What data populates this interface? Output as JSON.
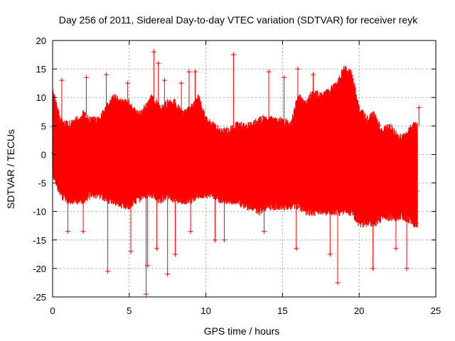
{
  "chart_data": {
    "type": "scatter",
    "title": "Day 256 of 2011, Sidereal Day-to-day VTEC variation (SDTVAR) for receiver reyk",
    "xlabel": "GPS time / hours",
    "ylabel": "SDTVAR / TECUs",
    "xlim": [
      0,
      25
    ],
    "ylim": [
      -25,
      20
    ],
    "xticks": [
      "0",
      "5",
      "10",
      "15",
      "20",
      "25"
    ],
    "yticks": [
      "-25",
      "-20",
      "-15",
      "-10",
      "-5",
      "0",
      "5",
      "10",
      "15",
      "20"
    ],
    "grid": true,
    "series": [
      {
        "name": "SDTVAR",
        "color": "#ff0000",
        "marker": "plus",
        "errorbars": true,
        "envelope": {
          "x": [
            0,
            0.5,
            1,
            1.5,
            2,
            2.5,
            3,
            3.5,
            4,
            4.5,
            5,
            5.5,
            6,
            6.5,
            7,
            7.5,
            8,
            8.5,
            9,
            9.5,
            10,
            10.5,
            11,
            11.5,
            12,
            12.5,
            13,
            13.5,
            14,
            14.5,
            15,
            15.5,
            16,
            16.5,
            17,
            17.5,
            18,
            18.5,
            19,
            19.5,
            20,
            20.5,
            21,
            21.5,
            22,
            22.5,
            23,
            23.5,
            23.8
          ],
          "upper": [
            11,
            6,
            5,
            6,
            7,
            6,
            6,
            8,
            10,
            9,
            9,
            7,
            8,
            10,
            8,
            9,
            9,
            7,
            8,
            10,
            6,
            5,
            4,
            4,
            5,
            5,
            5,
            6,
            6,
            6,
            6,
            5,
            10,
            9,
            11,
            10,
            11,
            12,
            15,
            14,
            8,
            6,
            7,
            4,
            5,
            3,
            3,
            5,
            5
          ],
          "lower": [
            -3,
            -7,
            -8,
            -8,
            -8,
            -7,
            -7,
            -8,
            -8,
            -9,
            -9,
            -8,
            -7,
            -7,
            -8,
            -7,
            -8,
            -8,
            -8,
            -7,
            -7,
            -7,
            -8,
            -8,
            -8,
            -9,
            -9,
            -10,
            -9,
            -9,
            -9,
            -9,
            -9,
            -10,
            -10,
            -10,
            -10,
            -10,
            -10,
            -10,
            -12,
            -12,
            -12,
            -11,
            -11,
            -11,
            -11,
            -12,
            -12
          ]
        },
        "outliers": [
          [
            0.6,
            13
          ],
          [
            2.2,
            13.5
          ],
          [
            3.5,
            14
          ],
          [
            4.9,
            12.5
          ],
          [
            6.6,
            18
          ],
          [
            6.9,
            16
          ],
          [
            7.3,
            13
          ],
          [
            8.4,
            12.5
          ],
          [
            8.9,
            14.5
          ],
          [
            9.3,
            14.5
          ],
          [
            11.8,
            17.5
          ],
          [
            14.1,
            14.5
          ],
          [
            15.1,
            13.5
          ],
          [
            16.0,
            15
          ],
          [
            17.0,
            14
          ],
          [
            23.9,
            8.2
          ],
          [
            1.0,
            -13.5
          ],
          [
            2.0,
            -13.5
          ],
          [
            3.6,
            -20.5
          ],
          [
            5.1,
            -17
          ],
          [
            6.1,
            -24.5
          ],
          [
            6.2,
            -19.5
          ],
          [
            6.8,
            -16.5
          ],
          [
            7.5,
            -21
          ],
          [
            8.0,
            -17.5
          ],
          [
            9.0,
            -13.5
          ],
          [
            10.6,
            -15
          ],
          [
            11.2,
            -15
          ],
          [
            13.8,
            -13.5
          ],
          [
            15.9,
            -16.5
          ],
          [
            18.1,
            -17.5
          ],
          [
            18.6,
            -22.5
          ],
          [
            20.9,
            -20
          ],
          [
            22.4,
            -16.5
          ],
          [
            23.1,
            -20
          ]
        ]
      }
    ]
  }
}
